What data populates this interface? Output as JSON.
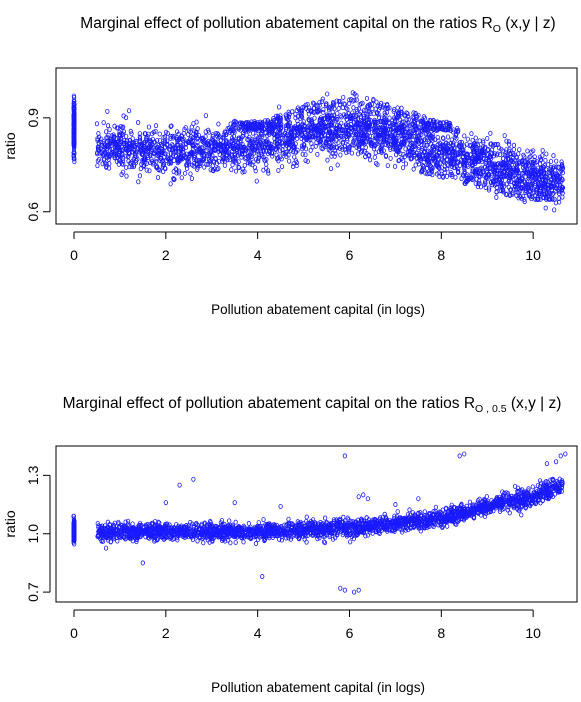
{
  "chart_data": [
    {
      "type": "scatter",
      "title": "Marginal effect of pollution abatement capital on the ratios R",
      "title_subscript": "O",
      "title_suffix": " (x,y | z)",
      "xlabel": "Pollution abatement capital (in logs)",
      "ylabel": "ratio",
      "xlim": [
        0,
        10.65
      ],
      "ylim": [
        0.58,
        1.04
      ],
      "x_ticks": [
        0,
        2,
        4,
        6,
        8,
        10
      ],
      "y_ticks": [
        0.6,
        0.9
      ],
      "y_tick_labels": [
        "0.6",
        "0.9"
      ],
      "point_color": "#1a1aff",
      "series": [
        {
          "pattern": "cloud",
          "anchors": [
            [
              0.05,
              0.82
            ],
            [
              1,
              0.8
            ],
            [
              2,
              0.79
            ],
            [
              3,
              0.8
            ],
            [
              4,
              0.81
            ],
            [
              5,
              0.84
            ],
            [
              6,
              0.85
            ],
            [
              7,
              0.83
            ],
            [
              8,
              0.8
            ],
            [
              9,
              0.76
            ],
            [
              10,
              0.72
            ],
            [
              10.6,
              0.7
            ]
          ],
          "n_points": 2600,
          "spread": 0.035,
          "x_range": [
            0.5,
            10.65
          ],
          "cluster_at_zero": {
            "x": 0.0,
            "y_range": [
              0.76,
              0.98
            ],
            "n": 180
          },
          "upper_band": {
            "x_range": [
              3.4,
              8.2
            ],
            "y_range": [
              0.86,
              0.995
            ],
            "n": 520
          },
          "lower_tail": {
            "x_range": [
              7.5,
              10.5
            ],
            "y_range": [
              0.64,
              0.77
            ],
            "n": 220
          }
        }
      ]
    },
    {
      "type": "scatter",
      "title": "Marginal effect of pollution abatement capital on the ratios R",
      "title_subscript": "O , 0.5",
      "title_suffix": " (x,y | z)",
      "xlabel": "Pollution abatement capital (in logs)",
      "ylabel": "ratio",
      "xlim": [
        0,
        10.65
      ],
      "ylim": [
        0.68,
        1.42
      ],
      "x_ticks": [
        0,
        2,
        4,
        6,
        8,
        10
      ],
      "y_ticks": [
        0.7,
        1.0,
        1.3
      ],
      "y_tick_labels": [
        "0.7",
        "1.0",
        "1.3"
      ],
      "point_color": "#1a1aff",
      "series": [
        {
          "pattern": "cloud",
          "anchors": [
            [
              0.05,
              1.0
            ],
            [
              1,
              1.01
            ],
            [
              2,
              1.01
            ],
            [
              3,
              1.01
            ],
            [
              4,
              1.01
            ],
            [
              5,
              1.02
            ],
            [
              6,
              1.03
            ],
            [
              7,
              1.05
            ],
            [
              8,
              1.08
            ],
            [
              9,
              1.14
            ],
            [
              10,
              1.19
            ],
            [
              10.6,
              1.25
            ]
          ],
          "n_points": 2600,
          "spread": 0.022,
          "x_range": [
            0.5,
            10.65
          ],
          "cluster_at_zero": {
            "x": 0.0,
            "y_range": [
              0.94,
              1.09
            ],
            "n": 160
          },
          "outliers": [
            [
              1.5,
              0.85
            ],
            [
              2.3,
              1.25
            ],
            [
              2.6,
              1.28
            ],
            [
              4.1,
              0.78
            ],
            [
              5.8,
              0.72
            ],
            [
              5.9,
              0.71
            ],
            [
              6.1,
              0.7
            ],
            [
              6.2,
              0.71
            ],
            [
              5.9,
              1.4
            ],
            [
              6.2,
              1.19
            ],
            [
              6.3,
              1.2
            ],
            [
              6.4,
              1.18
            ],
            [
              8.4,
              1.4
            ],
            [
              8.5,
              1.41
            ],
            [
              10.5,
              1.37
            ],
            [
              10.6,
              1.4
            ],
            [
              10.7,
              1.41
            ],
            [
              10.3,
              1.36
            ],
            [
              3.5,
              1.16
            ],
            [
              2.0,
              1.16
            ],
            [
              4.5,
              1.14
            ],
            [
              7.5,
              1.18
            ],
            [
              7.0,
              1.15
            ]
          ]
        }
      ]
    }
  ]
}
